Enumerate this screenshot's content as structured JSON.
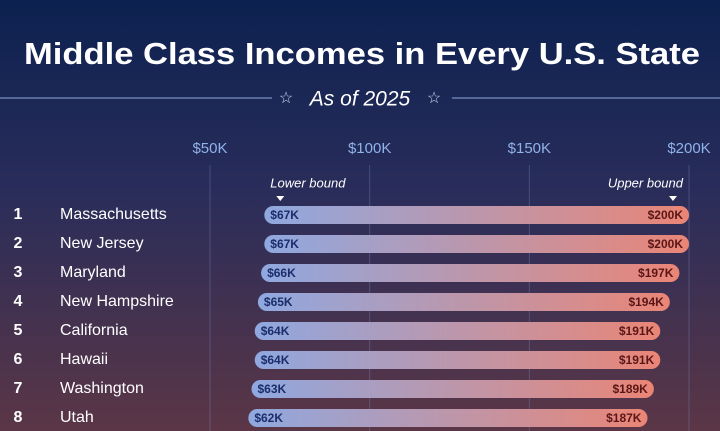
{
  "chart_data": {
    "type": "range_bar",
    "title": "Middle Class Incomes in Every U.S. State",
    "subtitle": "As of 2025",
    "ranks": [
      "1",
      "2",
      "3",
      "4",
      "5",
      "6",
      "7",
      "8"
    ],
    "categories": [
      "Massachusetts",
      "New Jersey",
      "Maryland",
      "New Hampshire",
      "California",
      "Hawaii",
      "Washington",
      "Utah"
    ],
    "series": [
      {
        "name": "Lower bound",
        "color": "#8fa8e0",
        "values": [
          67000,
          67000,
          66000,
          65000,
          64000,
          64000,
          63000,
          62000
        ],
        "value_labels": [
          "$67K",
          "$67K",
          "$66K",
          "$65K",
          "$64K",
          "$64K",
          "$63K",
          "$62K"
        ]
      },
      {
        "name": "Upper bound",
        "color": "#ea8576",
        "values": [
          200000,
          200000,
          197000,
          194000,
          191000,
          191000,
          189000,
          187000
        ],
        "value_labels": [
          "$200K",
          "$200K",
          "$197K",
          "$194K",
          "$191K",
          "$191K",
          "$189K",
          "$187K"
        ]
      }
    ],
    "xlim": [
      50000,
      200000
    ],
    "xticks": [
      {
        "value": 50000,
        "label": "$50K"
      },
      {
        "value": 100000,
        "label": "$100K"
      },
      {
        "value": 150000,
        "label": "$150K"
      },
      {
        "value": 200000,
        "label": "$200K"
      }
    ],
    "grid": true
  }
}
